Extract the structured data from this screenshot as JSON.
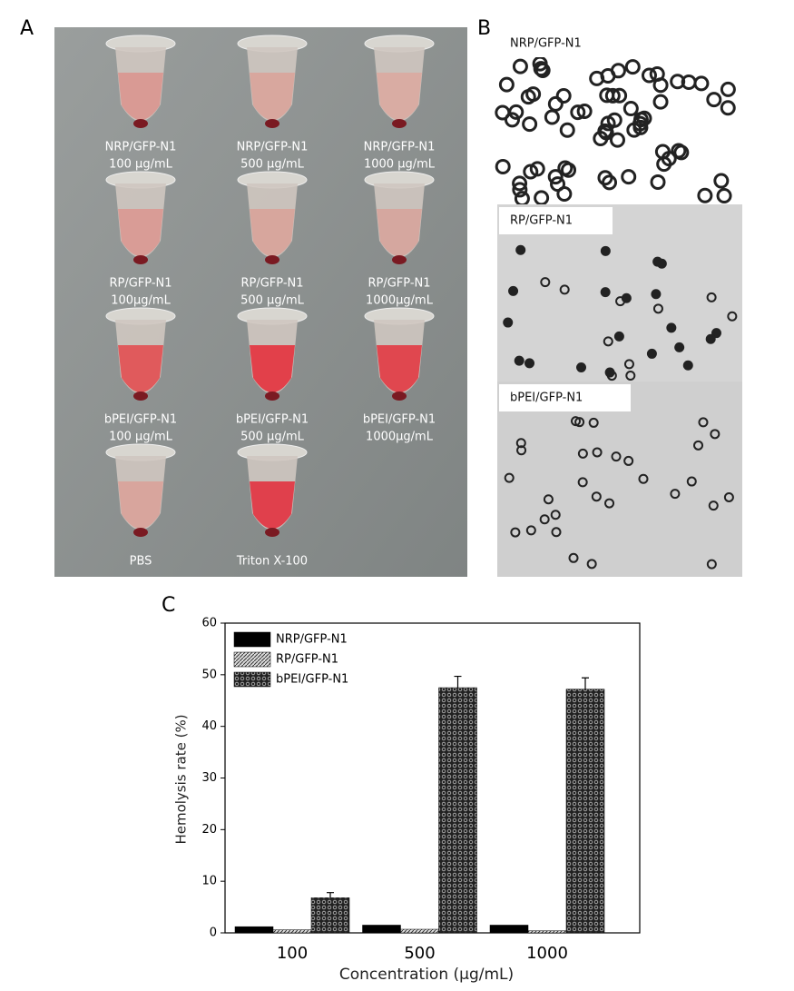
{
  "panel_a": {
    "label": "A",
    "tubes": [
      {
        "name": "NRP/GFP-N1",
        "concentration": "100 µg/mL"
      },
      {
        "name": "NRP/GFP-N1",
        "concentration": "500 µg/mL"
      },
      {
        "name": "NRP/GFP-N1",
        "concentration": "1000 µg/mL"
      },
      {
        "name": "RP/GFP-N1",
        "concentration": "100µg/mL"
      },
      {
        "name": "RP/GFP-N1",
        "concentration": "500 µg/mL"
      },
      {
        "name": "RP/GFP-N1",
        "concentration": "1000µg/mL"
      },
      {
        "name": "bPEI/GFP-N1",
        "concentration": "100 µg/mL"
      },
      {
        "name": "bPEI/GFP-N1",
        "concentration": "500 µg/mL"
      },
      {
        "name": "bPEI/GFP-N1",
        "concentration": "1000µg/mL"
      },
      {
        "name": "PBS"
      },
      {
        "name": "Triton X-100"
      }
    ]
  },
  "panel_b": {
    "label": "B",
    "images": [
      {
        "name": "NRP/GFP-N1"
      },
      {
        "name": "RP/GFP-N1"
      },
      {
        "name": "bPEI/GFP-N1"
      }
    ]
  },
  "chart_data": {
    "type": "bar",
    "panel_label": "C",
    "x_label": "Concentration (µg/mL)",
    "y_label": "Hemolysis rate (%)",
    "categories": [
      "100",
      "500",
      "1000"
    ],
    "series": [
      {
        "name": "NRP/GFP-N1",
        "color": "#000000",
        "values": [
          1.2,
          1.5,
          1.5
        ]
      },
      {
        "name": "RP/GFP-N1",
        "color": "#9a9a9a",
        "values": [
          0.6,
          0.7,
          0.4
        ]
      },
      {
        "name": "bPEI/GFP-N1",
        "color": "#333333",
        "values": [
          6.8,
          47.5,
          47.2
        ],
        "errors": [
          1.0,
          2.2,
          2.2
        ]
      }
    ],
    "ylim": [
      0,
      60
    ],
    "yticks": [
      0,
      10,
      20,
      30,
      40,
      50,
      60
    ],
    "legend": "top-left"
  }
}
